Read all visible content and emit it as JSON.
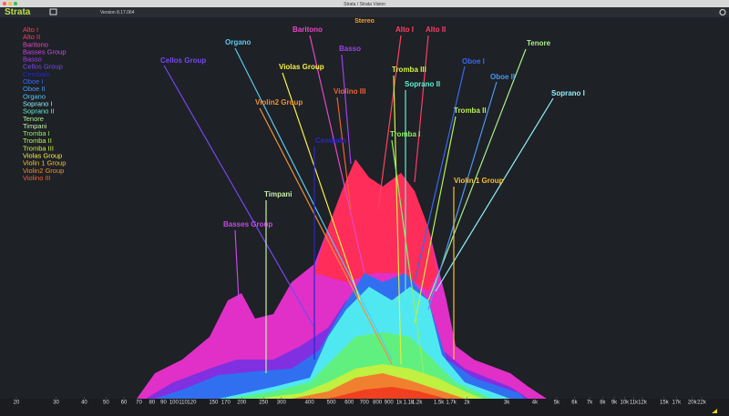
{
  "window_title": "Strata / Strata Vision",
  "app_name": "Strata",
  "version": "Version 8.17.064",
  "channel": "Stereo",
  "legend": [
    {
      "name": "Alto I",
      "color": "#ff4060"
    },
    {
      "name": "Alto II",
      "color": "#ff3a6a"
    },
    {
      "name": "Baritono",
      "color": "#e448c8"
    },
    {
      "name": "Basses Group",
      "color": "#c848e8"
    },
    {
      "name": "Basso",
      "color": "#a040f0"
    },
    {
      "name": "Cellos Group",
      "color": "#7448f0"
    },
    {
      "name": "Cembalo",
      "color": "#2828c8"
    },
    {
      "name": "Oboe I",
      "color": "#3868f0"
    },
    {
      "name": "Oboe II",
      "color": "#4898f0"
    },
    {
      "name": "Organo",
      "color": "#58c8f0"
    },
    {
      "name": "Soprano I",
      "color": "#90f0f8"
    },
    {
      "name": "Soprano II",
      "color": "#60f0d0"
    },
    {
      "name": "Tenore",
      "color": "#a8f088"
    },
    {
      "name": "Timpani",
      "color": "#c8f0a8"
    },
    {
      "name": "Tromba I",
      "color": "#90f060"
    },
    {
      "name": "Tromba II",
      "color": "#b8f050"
    },
    {
      "name": "Tromba III",
      "color": "#d8f040"
    },
    {
      "name": "Violas Group",
      "color": "#f8f040"
    },
    {
      "name": "Violin 1 Group",
      "color": "#f8c030"
    },
    {
      "name": "Violin2 Group",
      "color": "#f09030"
    },
    {
      "name": "Violino III",
      "color": "#f06030"
    }
  ],
  "callouts": [
    {
      "label": "Organo",
      "color": "#58c8f0"
    },
    {
      "label": "Baritono",
      "color": "#e448c8"
    },
    {
      "label": "Basso",
      "color": "#a040f0"
    },
    {
      "label": "Alto I",
      "color": "#ff4060"
    },
    {
      "label": "Alto II",
      "color": "#ff3a6a"
    },
    {
      "label": "Tenore",
      "color": "#a8f088"
    },
    {
      "label": "Cellos Group",
      "color": "#7448f0"
    },
    {
      "label": "Violas Group",
      "color": "#f8f040"
    },
    {
      "label": "Tromba III",
      "color": "#d8f040"
    },
    {
      "label": "Oboe I",
      "color": "#3868f0"
    },
    {
      "label": "Oboe II",
      "color": "#4898f0"
    },
    {
      "label": "Soprano II",
      "color": "#60f0d0"
    },
    {
      "label": "Soprano I",
      "color": "#90f0f8"
    },
    {
      "label": "Violino III",
      "color": "#f06030"
    },
    {
      "label": "Violin2 Group",
      "color": "#f09030"
    },
    {
      "label": "Tromba II",
      "color": "#b8f050"
    },
    {
      "label": "Tromba I",
      "color": "#90f060"
    },
    {
      "label": "Cembalo",
      "color": "#2828c8"
    },
    {
      "label": "Violin 1 Group",
      "color": "#f8c030"
    },
    {
      "label": "Timpani",
      "color": "#c8f0a8"
    },
    {
      "label": "Basses Group",
      "color": "#c848e8"
    }
  ],
  "frequency_ticks": [
    20,
    30,
    40,
    50,
    60,
    70,
    80,
    90,
    100,
    110,
    120,
    150,
    170,
    200,
    250,
    300,
    400,
    500,
    600,
    700,
    800,
    900,
    {
      "value": 1000,
      "label": "1k"
    },
    {
      "value": 1100,
      "label": "1.1k"
    },
    {
      "value": 1200,
      "label": "1.2k"
    },
    {
      "value": 1500,
      "label": "1.5k"
    },
    {
      "value": 1700,
      "label": "1.7k"
    },
    {
      "value": 2000,
      "label": "2k"
    },
    {
      "value": 3000,
      "label": "3k"
    },
    {
      "value": 4000,
      "label": "4k"
    },
    {
      "value": 5000,
      "label": "5k"
    },
    {
      "value": 6000,
      "label": "6k"
    },
    {
      "value": 7000,
      "label": "7k"
    },
    {
      "value": 8000,
      "label": "8k"
    },
    {
      "value": 9000,
      "label": "9k"
    },
    {
      "value": 10000,
      "label": "10k"
    },
    {
      "value": 11000,
      "label": "11k"
    },
    {
      "value": 12000,
      "label": "12k"
    },
    {
      "value": 15000,
      "label": "15k"
    },
    {
      "value": 17000,
      "label": "17k"
    },
    {
      "value": 20000,
      "label": "20k"
    },
    {
      "value": 22000,
      "label": "22k"
    }
  ]
}
